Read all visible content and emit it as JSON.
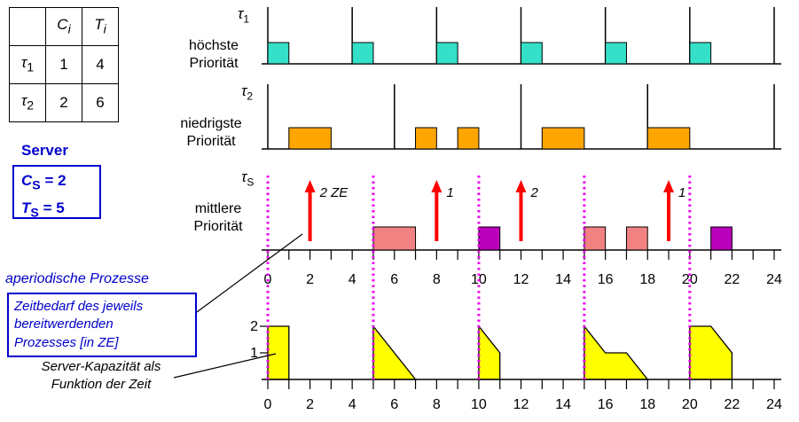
{
  "params_table": {
    "headers": [
      {
        "base": "C",
        "sub": "i"
      },
      {
        "base": "T",
        "sub": "i"
      }
    ],
    "rows": [
      {
        "task_base": "τ",
        "task_sub": "1",
        "c": "1",
        "t": "4"
      },
      {
        "task_base": "τ",
        "task_sub": "2",
        "c": "2",
        "t": "6"
      }
    ]
  },
  "server_box": {
    "title": "Server",
    "c_base": "C",
    "c_sub": "S",
    "c_rest": " = 2",
    "t_base": "T",
    "t_sub": "S",
    "t_rest": " = 5"
  },
  "labels": {
    "aperiodic": "aperiodische Prozesse",
    "zeitbedarf_line1": "Zeitbedarf des jeweils",
    "zeitbedarf_line2": "bereitwerdenden",
    "zeitbedarf_line3": "Prozesses [in ZE]",
    "kapazitaet_line1": "Server-Kapazität als",
    "kapazitaet_line2": "Funktion der Zeit"
  },
  "rows": {
    "tau1": {
      "sym_base": "τ",
      "sym_sub": "1",
      "prio_line1": "höchste",
      "prio_line2": "Priorität"
    },
    "tau2": {
      "sym_base": "τ",
      "sym_sub": "2",
      "prio_line1": "niedrigste",
      "prio_line2": "Priorität"
    },
    "tauS": {
      "sym_base": "τ",
      "sym_sub": "S",
      "prio_line1": "mittlere",
      "prio_line2": "Priorität"
    }
  },
  "chart_data": {
    "type": "scheduling-gantt",
    "time_axis": {
      "min": 0,
      "max": 24,
      "tick_step": 1,
      "label_step": 2,
      "labels": [
        "0",
        "2",
        "4",
        "6",
        "8",
        "10",
        "12",
        "14",
        "16",
        "18",
        "20",
        "22",
        "24"
      ]
    },
    "tasks": [
      {
        "name": "tau1",
        "priority": "höchste",
        "period": 4,
        "releases": [
          0,
          4,
          8,
          12,
          16,
          20,
          24
        ],
        "executions": [
          [
            0,
            1
          ],
          [
            4,
            5
          ],
          [
            8,
            9
          ],
          [
            12,
            13
          ],
          [
            16,
            17
          ],
          [
            20,
            21
          ]
        ],
        "color": "#35E0C8"
      },
      {
        "name": "tau2",
        "priority": "niedrigste",
        "period": 6,
        "releases": [
          0,
          6,
          12,
          18,
          24
        ],
        "executions": [
          [
            1,
            3
          ],
          [
            7,
            8
          ],
          [
            9,
            10
          ],
          [
            13,
            15
          ],
          [
            18,
            20
          ]
        ],
        "color": "#FFA500"
      }
    ],
    "server": {
      "name": "tauS",
      "priority": "mittlere",
      "capacity": 2,
      "period": 5,
      "replenishment_times": [
        0,
        5,
        10,
        15,
        20
      ],
      "arrow_color": "#FF0000",
      "replenishment_line_color": "#EE00EE",
      "aperiodic_arrivals": [
        {
          "t": 2,
          "label": "2 ZE"
        },
        {
          "t": 8,
          "label": "1"
        },
        {
          "t": 12,
          "label": "2"
        },
        {
          "t": 19,
          "label": "1"
        }
      ],
      "executions": [
        {
          "from": 5,
          "to": 7,
          "color": "#F28282"
        },
        {
          "from": 10,
          "to": 11,
          "color": "#BB00BB"
        },
        {
          "from": 15,
          "to": 16,
          "color": "#F28282"
        },
        {
          "from": 17,
          "to": 18,
          "color": "#F28282"
        },
        {
          "from": 21,
          "to": 22,
          "color": "#BB00BB"
        }
      ]
    },
    "capacity_function": {
      "fill": "#FFFF00",
      "level_labels": [
        "1",
        "2"
      ],
      "polygons": [
        [
          [
            0,
            0
          ],
          [
            0,
            2
          ],
          [
            1,
            2
          ],
          [
            1,
            0
          ]
        ],
        [
          [
            5,
            0
          ],
          [
            5,
            2
          ],
          [
            7,
            0
          ]
        ],
        [
          [
            10,
            0
          ],
          [
            10,
            2
          ],
          [
            11,
            1
          ],
          [
            11,
            0
          ]
        ],
        [
          [
            15,
            0
          ],
          [
            15,
            2
          ],
          [
            16,
            1
          ],
          [
            17,
            1
          ],
          [
            18,
            0
          ]
        ],
        [
          [
            20,
            0
          ],
          [
            20,
            2
          ],
          [
            21,
            2
          ],
          [
            22,
            1
          ],
          [
            22,
            0
          ]
        ]
      ]
    }
  }
}
